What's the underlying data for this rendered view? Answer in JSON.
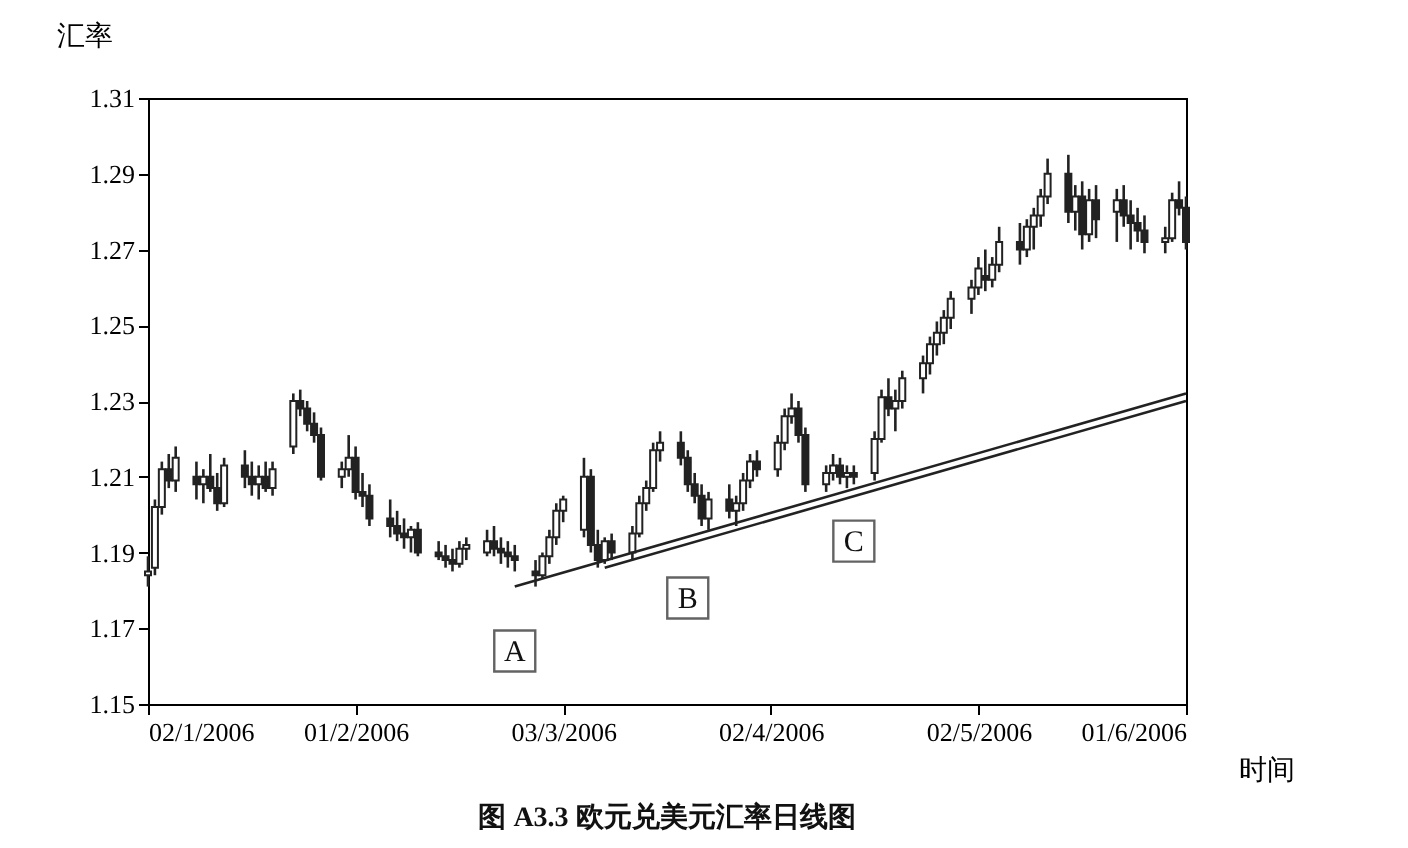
{
  "chart_data": {
    "type": "candlestick",
    "title": "图 A3.3   欧元兑美元汇率日线图",
    "xlabel": "时间",
    "ylabel": "汇率",
    "x": [
      "2006-01-02",
      "2006-01-03",
      "2006-01-04",
      "2006-01-05",
      "2006-01-06",
      "2006-01-09",
      "2006-01-10",
      "2006-01-11",
      "2006-01-12",
      "2006-01-13",
      "2006-01-16",
      "2006-01-17",
      "2006-01-18",
      "2006-01-19",
      "2006-01-20",
      "2006-01-23",
      "2006-01-24",
      "2006-01-25",
      "2006-01-26",
      "2006-01-27",
      "2006-01-30",
      "2006-01-31",
      "2006-02-01",
      "2006-02-02",
      "2006-02-03",
      "2006-02-06",
      "2006-02-07",
      "2006-02-08",
      "2006-02-09",
      "2006-02-10",
      "2006-02-13",
      "2006-02-14",
      "2006-02-15",
      "2006-02-16",
      "2006-02-17",
      "2006-02-20",
      "2006-02-21",
      "2006-02-22",
      "2006-02-23",
      "2006-02-24",
      "2006-02-27",
      "2006-02-28",
      "2006-03-01",
      "2006-03-02",
      "2006-03-03",
      "2006-03-06",
      "2006-03-07",
      "2006-03-08",
      "2006-03-09",
      "2006-03-10",
      "2006-03-13",
      "2006-03-14",
      "2006-03-15",
      "2006-03-16",
      "2006-03-17",
      "2006-03-20",
      "2006-03-21",
      "2006-03-22",
      "2006-03-23",
      "2006-03-24",
      "2006-03-27",
      "2006-03-28",
      "2006-03-29",
      "2006-03-30",
      "2006-03-31",
      "2006-04-03",
      "2006-04-04",
      "2006-04-05",
      "2006-04-06",
      "2006-04-07",
      "2006-04-10",
      "2006-04-11",
      "2006-04-12",
      "2006-04-13",
      "2006-04-14",
      "2006-04-17",
      "2006-04-18",
      "2006-04-19",
      "2006-04-20",
      "2006-04-21",
      "2006-04-24",
      "2006-04-25",
      "2006-04-26",
      "2006-04-27",
      "2006-04-28",
      "2006-05-01",
      "2006-05-02",
      "2006-05-03",
      "2006-05-04",
      "2006-05-05",
      "2006-05-08",
      "2006-05-09",
      "2006-05-10",
      "2006-05-11",
      "2006-05-12",
      "2006-05-15",
      "2006-05-16",
      "2006-05-17",
      "2006-05-18",
      "2006-05-19",
      "2006-05-22",
      "2006-05-23",
      "2006-05-24",
      "2006-05-25",
      "2006-05-26",
      "2006-05-29",
      "2006-05-30",
      "2006-05-31",
      "2006-06-01"
    ],
    "ohlc": [
      [
        1.184,
        1.189,
        1.181,
        1.185
      ],
      [
        1.186,
        1.204,
        1.184,
        1.202
      ],
      [
        1.202,
        1.214,
        1.2,
        1.212
      ],
      [
        1.212,
        1.216,
        1.207,
        1.209
      ],
      [
        1.209,
        1.218,
        1.206,
        1.215
      ],
      [
        1.21,
        1.214,
        1.204,
        1.208
      ],
      [
        1.208,
        1.212,
        1.203,
        1.21
      ],
      [
        1.21,
        1.216,
        1.206,
        1.207
      ],
      [
        1.207,
        1.211,
        1.201,
        1.203
      ],
      [
        1.203,
        1.215,
        1.202,
        1.213
      ],
      [
        1.213,
        1.217,
        1.207,
        1.21
      ],
      [
        1.21,
        1.214,
        1.205,
        1.208
      ],
      [
        1.208,
        1.213,
        1.204,
        1.21
      ],
      [
        1.21,
        1.214,
        1.206,
        1.207
      ],
      [
        1.207,
        1.214,
        1.205,
        1.212
      ],
      [
        1.218,
        1.232,
        1.216,
        1.23
      ],
      [
        1.23,
        1.233,
        1.226,
        1.228
      ],
      [
        1.228,
        1.23,
        1.222,
        1.224
      ],
      [
        1.224,
        1.227,
        1.219,
        1.221
      ],
      [
        1.221,
        1.223,
        1.209,
        1.21
      ],
      [
        1.21,
        1.214,
        1.207,
        1.212
      ],
      [
        1.212,
        1.221,
        1.21,
        1.215
      ],
      [
        1.215,
        1.218,
        1.204,
        1.206
      ],
      [
        1.206,
        1.211,
        1.202,
        1.205
      ],
      [
        1.205,
        1.208,
        1.197,
        1.199
      ],
      [
        1.199,
        1.204,
        1.194,
        1.197
      ],
      [
        1.197,
        1.201,
        1.193,
        1.195
      ],
      [
        1.195,
        1.199,
        1.191,
        1.194
      ],
      [
        1.194,
        1.197,
        1.19,
        1.196
      ],
      [
        1.196,
        1.198,
        1.189,
        1.19
      ],
      [
        1.19,
        1.193,
        1.188,
        1.189
      ],
      [
        1.189,
        1.192,
        1.186,
        1.188
      ],
      [
        1.188,
        1.191,
        1.185,
        1.187
      ],
      [
        1.187,
        1.193,
        1.186,
        1.191
      ],
      [
        1.191,
        1.194,
        1.188,
        1.192
      ],
      [
        1.19,
        1.196,
        1.189,
        1.193
      ],
      [
        1.193,
        1.197,
        1.189,
        1.191
      ],
      [
        1.191,
        1.194,
        1.187,
        1.19
      ],
      [
        1.19,
        1.193,
        1.186,
        1.189
      ],
      [
        1.189,
        1.192,
        1.185,
        1.188
      ],
      [
        1.185,
        1.188,
        1.181,
        1.184
      ],
      [
        1.184,
        1.19,
        1.183,
        1.189
      ],
      [
        1.189,
        1.196,
        1.187,
        1.194
      ],
      [
        1.194,
        1.203,
        1.192,
        1.201
      ],
      [
        1.201,
        1.205,
        1.198,
        1.204
      ],
      [
        1.196,
        1.215,
        1.194,
        1.21
      ],
      [
        1.21,
        1.212,
        1.19,
        1.192
      ],
      [
        1.192,
        1.196,
        1.186,
        1.188
      ],
      [
        1.188,
        1.194,
        1.187,
        1.193
      ],
      [
        1.193,
        1.195,
        1.188,
        1.19
      ],
      [
        1.19,
        1.197,
        1.188,
        1.195
      ],
      [
        1.195,
        1.205,
        1.194,
        1.203
      ],
      [
        1.203,
        1.209,
        1.201,
        1.207
      ],
      [
        1.207,
        1.219,
        1.206,
        1.217
      ],
      [
        1.217,
        1.222,
        1.214,
        1.219
      ],
      [
        1.219,
        1.222,
        1.213,
        1.215
      ],
      [
        1.215,
        1.217,
        1.206,
        1.208
      ],
      [
        1.208,
        1.211,
        1.203,
        1.205
      ],
      [
        1.205,
        1.208,
        1.197,
        1.199
      ],
      [
        1.199,
        1.206,
        1.196,
        1.204
      ],
      [
        1.204,
        1.208,
        1.199,
        1.201
      ],
      [
        1.201,
        1.205,
        1.197,
        1.203
      ],
      [
        1.203,
        1.211,
        1.201,
        1.209
      ],
      [
        1.209,
        1.216,
        1.207,
        1.214
      ],
      [
        1.214,
        1.217,
        1.21,
        1.212
      ],
      [
        1.212,
        1.221,
        1.21,
        1.219
      ],
      [
        1.219,
        1.228,
        1.217,
        1.226
      ],
      [
        1.226,
        1.232,
        1.224,
        1.228
      ],
      [
        1.228,
        1.23,
        1.219,
        1.221
      ],
      [
        1.221,
        1.223,
        1.206,
        1.208
      ],
      [
        1.208,
        1.213,
        1.206,
        1.211
      ],
      [
        1.211,
        1.216,
        1.209,
        1.213
      ],
      [
        1.213,
        1.215,
        1.208,
        1.21
      ],
      [
        1.21,
        1.213,
        1.207,
        1.211
      ],
      [
        1.211,
        1.213,
        1.208,
        1.21
      ],
      [
        1.211,
        1.222,
        1.209,
        1.22
      ],
      [
        1.22,
        1.233,
        1.219,
        1.231
      ],
      [
        1.231,
        1.236,
        1.226,
        1.228
      ],
      [
        1.228,
        1.233,
        1.222,
        1.23
      ],
      [
        1.23,
        1.238,
        1.228,
        1.236
      ],
      [
        1.236,
        1.242,
        1.232,
        1.24
      ],
      [
        1.24,
        1.247,
        1.237,
        1.245
      ],
      [
        1.245,
        1.251,
        1.242,
        1.248
      ],
      [
        1.248,
        1.254,
        1.245,
        1.252
      ],
      [
        1.252,
        1.259,
        1.249,
        1.257
      ],
      [
        1.257,
        1.262,
        1.253,
        1.26
      ],
      [
        1.26,
        1.268,
        1.258,
        1.265
      ],
      [
        1.263,
        1.27,
        1.259,
        1.262
      ],
      [
        1.262,
        1.268,
        1.26,
        1.266
      ],
      [
        1.266,
        1.276,
        1.264,
        1.272
      ],
      [
        1.272,
        1.277,
        1.266,
        1.27
      ],
      [
        1.27,
        1.278,
        1.268,
        1.276
      ],
      [
        1.276,
        1.281,
        1.27,
        1.279
      ],
      [
        1.279,
        1.286,
        1.276,
        1.284
      ],
      [
        1.284,
        1.294,
        1.282,
        1.29
      ],
      [
        1.29,
        1.295,
        1.277,
        1.28
      ],
      [
        1.28,
        1.287,
        1.275,
        1.284
      ],
      [
        1.284,
        1.288,
        1.27,
        1.274
      ],
      [
        1.274,
        1.286,
        1.272,
        1.283
      ],
      [
        1.283,
        1.287,
        1.273,
        1.278
      ],
      [
        1.28,
        1.286,
        1.272,
        1.283
      ],
      [
        1.283,
        1.287,
        1.276,
        1.279
      ],
      [
        1.279,
        1.283,
        1.27,
        1.277
      ],
      [
        1.277,
        1.281,
        1.272,
        1.275
      ],
      [
        1.275,
        1.279,
        1.269,
        1.272
      ],
      [
        1.272,
        1.276,
        1.269,
        1.273
      ],
      [
        1.273,
        1.285,
        1.272,
        1.283
      ],
      [
        1.283,
        1.288,
        1.279,
        1.281
      ],
      [
        1.281,
        1.284,
        1.27,
        1.272
      ]
    ],
    "series": [
      {
        "type": "line",
        "color": "#222222",
        "x": [
          "2006-02-24",
          "2006-06-01"
        ],
        "values": [
          1.181,
          1.232
        ]
      },
      {
        "type": "line",
        "color": "#222222",
        "x": [
          "2006-03-09",
          "2006-06-01"
        ],
        "values": [
          1.186,
          1.23
        ]
      }
    ],
    "annotations": [
      {
        "text": "A",
        "x": "2006-02-24",
        "y": 1.164
      },
      {
        "text": "B",
        "x": "2006-03-21",
        "y": 1.178
      },
      {
        "text": "C",
        "x": "2006-04-14",
        "y": 1.193
      }
    ],
    "xlim": [
      "2006-01-02",
      "2006-06-01"
    ],
    "xticks": [
      {
        "value": "2006-01-02",
        "label": "02/1/2006"
      },
      {
        "value": "2006-02-01",
        "label": "01/2/2006"
      },
      {
        "value": "2006-03-03",
        "label": "03/3/2006"
      },
      {
        "value": "2006-04-02",
        "label": "02/4/2006"
      },
      {
        "value": "2006-05-02",
        "label": "02/5/2006"
      },
      {
        "value": "2006-06-01",
        "label": "01/6/2006"
      }
    ],
    "ylim": [
      1.15,
      1.31
    ],
    "yticks": [
      1.15,
      1.17,
      1.19,
      1.21,
      1.23,
      1.25,
      1.27,
      1.29,
      1.31
    ]
  }
}
